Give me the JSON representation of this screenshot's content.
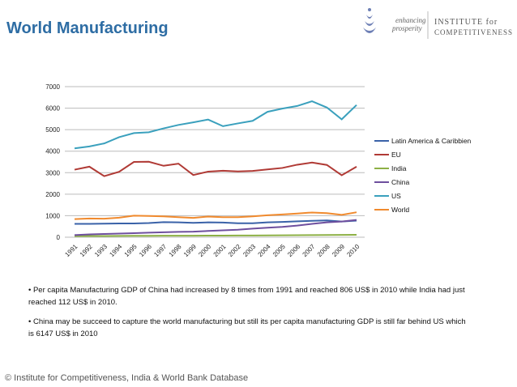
{
  "title": "World Manufacturing",
  "logo": {
    "tagline1": "enhancing",
    "tagline2": "prosperity",
    "name1": "INSTITUTE for",
    "name2": "COMPETITIVENESS"
  },
  "bullets": [
    "• Per capita Manufacturing GDP of China had increased by 8 times from 1991 and reached 806 US$ in 2010 while India had just reached 112 US$ in 2010.",
    "• China may be succeed to capture the world manufacturing but still its per capita manufacturing GDP is still far behind US which is 6147 US$ in 2010"
  ],
  "footer": "© Institute for Competitiveness, India & World Bank Database",
  "chart_data": {
    "type": "line",
    "title": "",
    "xlabel": "",
    "ylabel": "",
    "ylim": [
      0,
      7000
    ],
    "yticks": [
      0,
      1000,
      2000,
      3000,
      4000,
      5000,
      6000,
      7000
    ],
    "grid": "horizontal",
    "legend": "right",
    "categories": [
      "1991",
      "1992",
      "1993",
      "1994",
      "1995",
      "1996",
      "1997",
      "1998",
      "1999",
      "2000",
      "2001",
      "2002",
      "2003",
      "2004",
      "2005",
      "2006",
      "2007",
      "2008",
      "2009",
      "2010"
    ],
    "series": [
      {
        "name": "Latin America & Caribbien",
        "color": "#3a62a8",
        "values": [
          620,
          620,
          630,
          640,
          640,
          660,
          700,
          690,
          670,
          690,
          680,
          650,
          650,
          690,
          710,
          740,
          760,
          780,
          730,
          770
        ]
      },
      {
        "name": "EU",
        "color": "#b03a35",
        "values": [
          3140,
          3280,
          2840,
          3040,
          3500,
          3510,
          3320,
          3420,
          2890,
          3050,
          3090,
          3060,
          3080,
          3150,
          3220,
          3370,
          3470,
          3360,
          2880,
          3280
        ]
      },
      {
        "name": "India",
        "color": "#8db045",
        "values": [
          50,
          55,
          58,
          60,
          65,
          68,
          70,
          72,
          72,
          75,
          75,
          78,
          80,
          85,
          90,
          95,
          100,
          105,
          108,
          112
        ]
      },
      {
        "name": "China",
        "color": "#6e4f9e",
        "values": [
          100,
          130,
          150,
          170,
          190,
          210,
          230,
          250,
          260,
          290,
          320,
          350,
          400,
          440,
          480,
          540,
          620,
          690,
          730,
          806
        ]
      },
      {
        "name": "US",
        "color": "#3aa0bd",
        "values": [
          4130,
          4220,
          4360,
          4650,
          4840,
          4880,
          5060,
          5220,
          5340,
          5470,
          5160,
          5290,
          5410,
          5830,
          5980,
          6100,
          6320,
          6030,
          5480,
          6147
        ]
      },
      {
        "name": "World",
        "color": "#f08a2e",
        "values": [
          840,
          870,
          860,
          910,
          1000,
          990,
          970,
          930,
          900,
          960,
          930,
          930,
          970,
          1020,
          1060,
          1100,
          1150,
          1120,
          1040,
          1160
        ]
      }
    ]
  }
}
